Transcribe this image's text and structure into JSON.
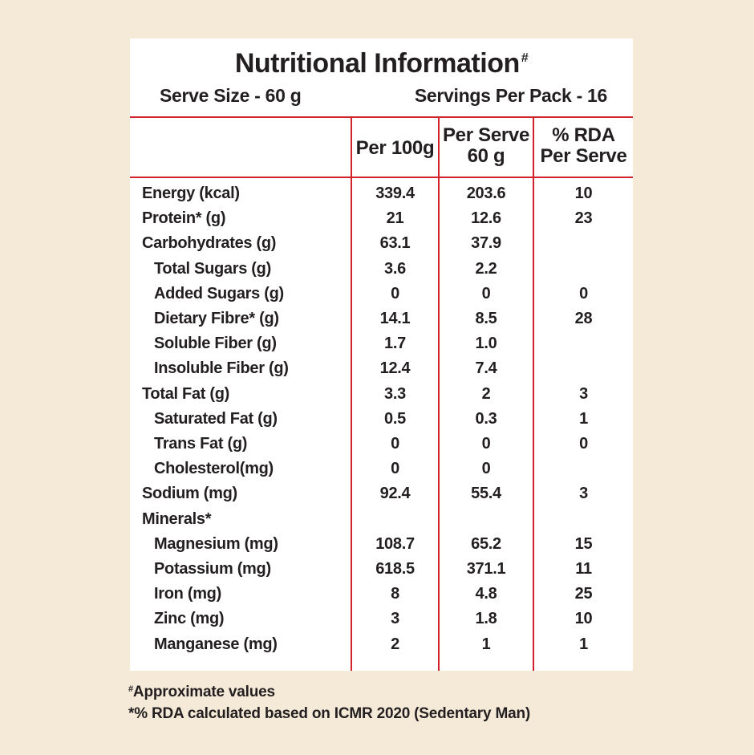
{
  "title": "Nutritional Information",
  "title_mark": "#",
  "serve_size": "Serve Size - 60 g",
  "servings_per_pack": "Servings Per Pack - 16",
  "columns": {
    "per100": "Per 100g",
    "perserve_l1": "Per Serve",
    "perserve_l2": "60 g",
    "rda_l1": "% RDA",
    "rda_l2": "Per Serve"
  },
  "rows": [
    {
      "label": "Energy (kcal)",
      "per100": "339.4",
      "serve": "203.6",
      "rda": "10",
      "indent": false
    },
    {
      "label": "Protein* (g)",
      "per100": "21",
      "serve": "12.6",
      "rda": "23",
      "indent": false
    },
    {
      "label": "Carbohydrates (g)",
      "per100": "63.1",
      "serve": "37.9",
      "rda": "",
      "indent": false
    },
    {
      "label": "Total Sugars (g)",
      "per100": "3.6",
      "serve": "2.2",
      "rda": "",
      "indent": true
    },
    {
      "label": "Added Sugars (g)",
      "per100": "0",
      "serve": "0",
      "rda": "0",
      "indent": true
    },
    {
      "label": "Dietary Fibre* (g)",
      "per100": "14.1",
      "serve": "8.5",
      "rda": "28",
      "indent": true
    },
    {
      "label": "Soluble Fiber (g)",
      "per100": "1.7",
      "serve": "1.0",
      "rda": "",
      "indent": true
    },
    {
      "label": "Insoluble Fiber (g)",
      "per100": "12.4",
      "serve": "7.4",
      "rda": "",
      "indent": true
    },
    {
      "label": "Total Fat (g)",
      "per100": "3.3",
      "serve": "2",
      "rda": "3",
      "indent": false
    },
    {
      "label": "Saturated Fat (g)",
      "per100": "0.5",
      "serve": "0.3",
      "rda": "1",
      "indent": true
    },
    {
      "label": "Trans Fat (g)",
      "per100": "0",
      "serve": "0",
      "rda": "0",
      "indent": true
    },
    {
      "label": "Cholesterol(mg)",
      "per100": "0",
      "serve": "0",
      "rda": "",
      "indent": true
    },
    {
      "label": "Sodium (mg)",
      "per100": "92.4",
      "serve": "55.4",
      "rda": "3",
      "indent": false
    },
    {
      "label": "Minerals*",
      "per100": "",
      "serve": "",
      "rda": "",
      "indent": false
    },
    {
      "label": "Magnesium (mg)",
      "per100": "108.7",
      "serve": "65.2",
      "rda": "15",
      "indent": true
    },
    {
      "label": "Potassium (mg)",
      "per100": "618.5",
      "serve": "371.1",
      "rda": "11",
      "indent": true
    },
    {
      "label": "Iron (mg)",
      "per100": "8",
      "serve": "4.8",
      "rda": "25",
      "indent": true
    },
    {
      "label": "Zinc (mg)",
      "per100": "3",
      "serve": "1.8",
      "rda": "10",
      "indent": true
    },
    {
      "label": "Manganese (mg)",
      "per100": "2",
      "serve": "1",
      "rda": "1",
      "indent": true
    }
  ],
  "footnotes": {
    "approx_mark": "#",
    "approx": "Approximate values",
    "rda_note": "*% RDA calculated based on ICMR 2020 (Sedentary Man)"
  },
  "colors": {
    "background": "#f5ead8",
    "panel": "#ffffff",
    "rule": "#d2232a",
    "text": "#231f20"
  }
}
